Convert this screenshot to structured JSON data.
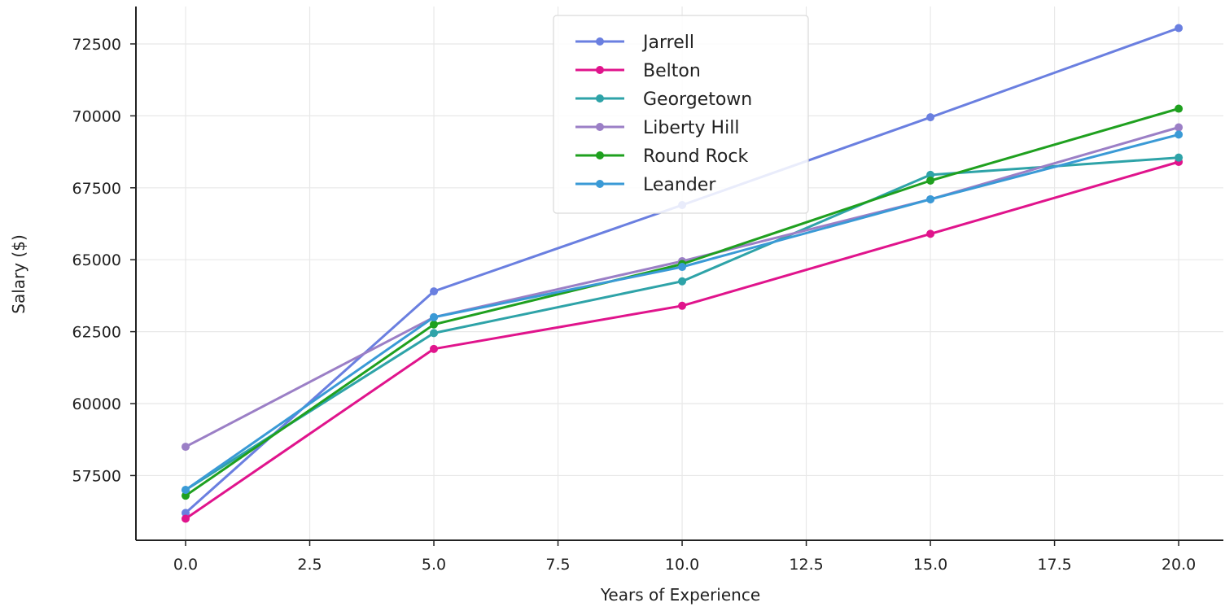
{
  "chart_data": {
    "type": "line",
    "title": "",
    "xlabel": "Years of Experience",
    "ylabel": "Salary ($)",
    "x": [
      0,
      5,
      10,
      15,
      20
    ],
    "xlim": [
      -1.0,
      20.9
    ],
    "ylim": [
      55250,
      73800
    ],
    "xticks": [
      0.0,
      2.5,
      5.0,
      7.5,
      10.0,
      12.5,
      15.0,
      17.5,
      20.0
    ],
    "xtick_labels": [
      "0.0",
      "2.5",
      "5.0",
      "7.5",
      "10.0",
      "12.5",
      "15.0",
      "17.5",
      "20.0"
    ],
    "yticks": [
      57500,
      60000,
      62500,
      65000,
      67500,
      70000,
      72500
    ],
    "ytick_labels": [
      "57500",
      "60000",
      "62500",
      "65000",
      "67500",
      "70000",
      "72500"
    ],
    "grid": true,
    "legend_position": "upper center",
    "series": [
      {
        "name": "Jarrell",
        "color": "#6a7fe0",
        "values": [
          56200,
          63900,
          66900,
          69950,
          73050
        ]
      },
      {
        "name": "Belton",
        "color": "#e0148c",
        "values": [
          56000,
          61900,
          63400,
          65900,
          68400
        ]
      },
      {
        "name": "Georgetown",
        "color": "#2ea3a8",
        "values": [
          57000,
          62450,
          64250,
          67950,
          68550
        ]
      },
      {
        "name": "Liberty Hill",
        "color": "#9b7fc6",
        "values": [
          58500,
          63000,
          64950,
          67100,
          69600
        ]
      },
      {
        "name": "Round Rock",
        "color": "#1fa01f",
        "values": [
          56800,
          62750,
          64850,
          67750,
          70250
        ]
      },
      {
        "name": "Leander",
        "color": "#3a9ad6",
        "values": [
          57000,
          63000,
          64750,
          67100,
          69350
        ]
      }
    ]
  }
}
